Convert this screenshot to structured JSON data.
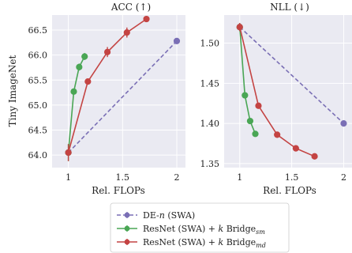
{
  "ylabel_left": "Tiny ImageNet",
  "chart_data": [
    {
      "type": "line",
      "title": "ACC (↑)",
      "xlabel": "Rel. FLOPs",
      "ylabel": "Tiny ImageNet",
      "xlim": [
        0.85,
        2.08
      ],
      "ylim": [
        63.75,
        66.8
      ],
      "xticks": [
        "1",
        "1.5",
        "2"
      ],
      "yticks": [
        "64.0",
        "64.5",
        "65.0",
        "65.5",
        "66.0",
        "66.5"
      ],
      "grid": true,
      "series": [
        {
          "key": "de",
          "name": "DE-n (SWA)",
          "x": [
            1.0,
            2.0
          ],
          "y": [
            64.05,
            66.28
          ],
          "err": [
            0.05,
            0.05
          ]
        },
        {
          "key": "sm",
          "name": "ResNet (SWA) + k Bridge_sm",
          "x": [
            1.0,
            1.05,
            1.1,
            1.15
          ],
          "y": [
            64.05,
            65.27,
            65.76,
            65.97
          ],
          "err": [
            0.17,
            0.05,
            0.07,
            0.07
          ]
        },
        {
          "key": "md",
          "name": "ResNet (SWA) + k Bridge_md",
          "x": [
            1.0,
            1.18,
            1.36,
            1.54,
            1.72
          ],
          "y": [
            64.05,
            65.47,
            66.06,
            66.45,
            66.72
          ],
          "err": [
            0.17,
            0.05,
            0.1,
            0.1,
            0.05
          ]
        }
      ]
    },
    {
      "type": "line",
      "title": "NLL (↓)",
      "xlabel": "Rel. FLOPs",
      "ylabel": "",
      "xlim": [
        0.85,
        2.08
      ],
      "ylim": [
        1.345,
        1.535
      ],
      "xticks": [
        "1",
        "1.5",
        "2"
      ],
      "yticks": [
        "1.35",
        "1.40",
        "1.45",
        "1.50"
      ],
      "grid": true,
      "series": [
        {
          "key": "de",
          "name": "DE-n (SWA)",
          "x": [
            1.0,
            2.0
          ],
          "y": [
            1.52,
            1.4
          ],
          "err": [
            0.005,
            0.002
          ]
        },
        {
          "key": "sm",
          "name": "ResNet (SWA) + k Bridge_sm",
          "x": [
            1.0,
            1.05,
            1.1,
            1.15
          ],
          "y": [
            1.52,
            1.435,
            1.403,
            1.387
          ],
          "err": [
            0.005,
            0.002,
            0.002,
            0.002
          ]
        },
        {
          "key": "md",
          "name": "ResNet (SWA) + k Bridge_md",
          "x": [
            1.0,
            1.18,
            1.36,
            1.54,
            1.72
          ],
          "y": [
            1.52,
            1.422,
            1.386,
            1.369,
            1.359
          ],
          "err": [
            0.005,
            0.002,
            0.002,
            0.002,
            0.002
          ]
        }
      ]
    }
  ],
  "legend": {
    "items": [
      {
        "key": "de",
        "label_main": "DE-",
        "label_italic": "n",
        "label_rest": " (SWA)",
        "label_sub": ""
      },
      {
        "key": "sm",
        "label_main": "ResNet (SWA) + ",
        "label_italic": "k",
        "label_rest": " Bridge",
        "label_sub": "sm"
      },
      {
        "key": "md",
        "label_main": "ResNet (SWA) + ",
        "label_italic": "k",
        "label_rest": " Bridge",
        "label_sub": "md"
      }
    ]
  },
  "colors": {
    "de": "#7a6fb5",
    "sm": "#4aa655",
    "md": "#c44443",
    "plot_bg": "#eaeaf2",
    "grid": "#ffffff"
  }
}
